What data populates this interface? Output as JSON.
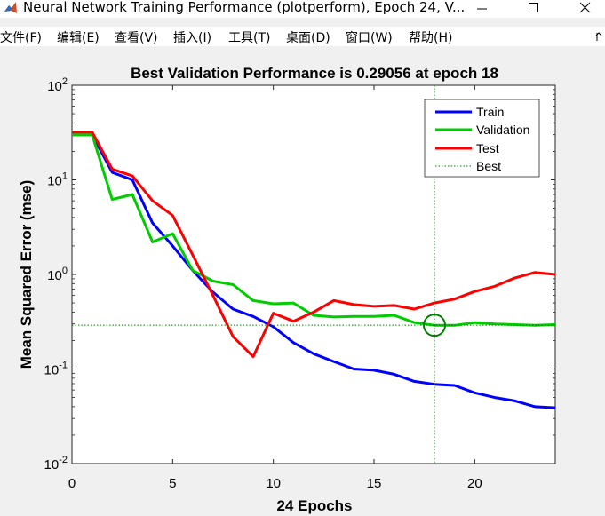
{
  "window": {
    "title": "Neural Network Training Performance (plotperform), Epoch 24, V...",
    "app_icon": "matlab-icon"
  },
  "menu": [
    {
      "label": "文件(F)"
    },
    {
      "label": "编辑(E)"
    },
    {
      "label": "查看(V)"
    },
    {
      "label": "插入(I)"
    },
    {
      "label": "工具(T)"
    },
    {
      "label": "桌面(D)"
    },
    {
      "label": "窗口(W)"
    },
    {
      "label": "帮助(H)"
    }
  ],
  "colors": {
    "train": "#0000ff",
    "validation": "#00cc00",
    "test": "#ff0000",
    "best_marker": "#008000"
  },
  "chart_data": {
    "type": "line",
    "title": "Best Validation Performance is 0.29056 at epoch 18",
    "xlabel": "24 Epochs",
    "ylabel": "Mean Squared Error  (mse)",
    "xlim": [
      0,
      24
    ],
    "ylim": [
      0.01,
      100
    ],
    "yscale": "log",
    "x_ticks": [
      0,
      5,
      10,
      15,
      20
    ],
    "y_ticks": [
      {
        "base": "10",
        "exp": "2"
      },
      {
        "base": "10",
        "exp": "1"
      },
      {
        "base": "10",
        "exp": "0"
      },
      {
        "base": "10",
        "exp": "-1"
      },
      {
        "base": "10",
        "exp": "-2"
      }
    ],
    "grid": false,
    "legend_position": "top-right",
    "x": [
      0,
      1,
      2,
      3,
      4,
      5,
      6,
      7,
      8,
      9,
      10,
      11,
      12,
      13,
      14,
      15,
      16,
      17,
      18,
      19,
      20,
      21,
      22,
      23,
      24
    ],
    "series": [
      {
        "name": "Train",
        "color": "#0000ff",
        "values": [
          30,
          30,
          12,
          10,
          3.5,
          2,
          1.1,
          0.65,
          0.43,
          0.36,
          0.28,
          0.19,
          0.145,
          0.12,
          0.1,
          0.097,
          0.088,
          0.074,
          0.069,
          0.067,
          0.056,
          0.05,
          0.046,
          0.04,
          0.039
        ]
      },
      {
        "name": "Validation",
        "color": "#00cc00",
        "values": [
          30,
          30,
          6.2,
          7,
          2.2,
          2.7,
          1.1,
          0.85,
          0.78,
          0.53,
          0.49,
          0.5,
          0.37,
          0.355,
          0.36,
          0.36,
          0.37,
          0.31,
          0.29056,
          0.29,
          0.31,
          0.3,
          0.295,
          0.29,
          0.295
        ]
      },
      {
        "name": "Test",
        "color": "#ff0000",
        "values": [
          32,
          32,
          13,
          11,
          6,
          4.2,
          1.6,
          0.6,
          0.22,
          0.135,
          0.39,
          0.32,
          0.4,
          0.53,
          0.48,
          0.46,
          0.47,
          0.43,
          0.5,
          0.55,
          0.66,
          0.75,
          0.92,
          1.05,
          1.0
        ]
      }
    ],
    "best": {
      "name": "Best",
      "epoch": 18,
      "value": 0.29056,
      "color": "#008000"
    }
  }
}
